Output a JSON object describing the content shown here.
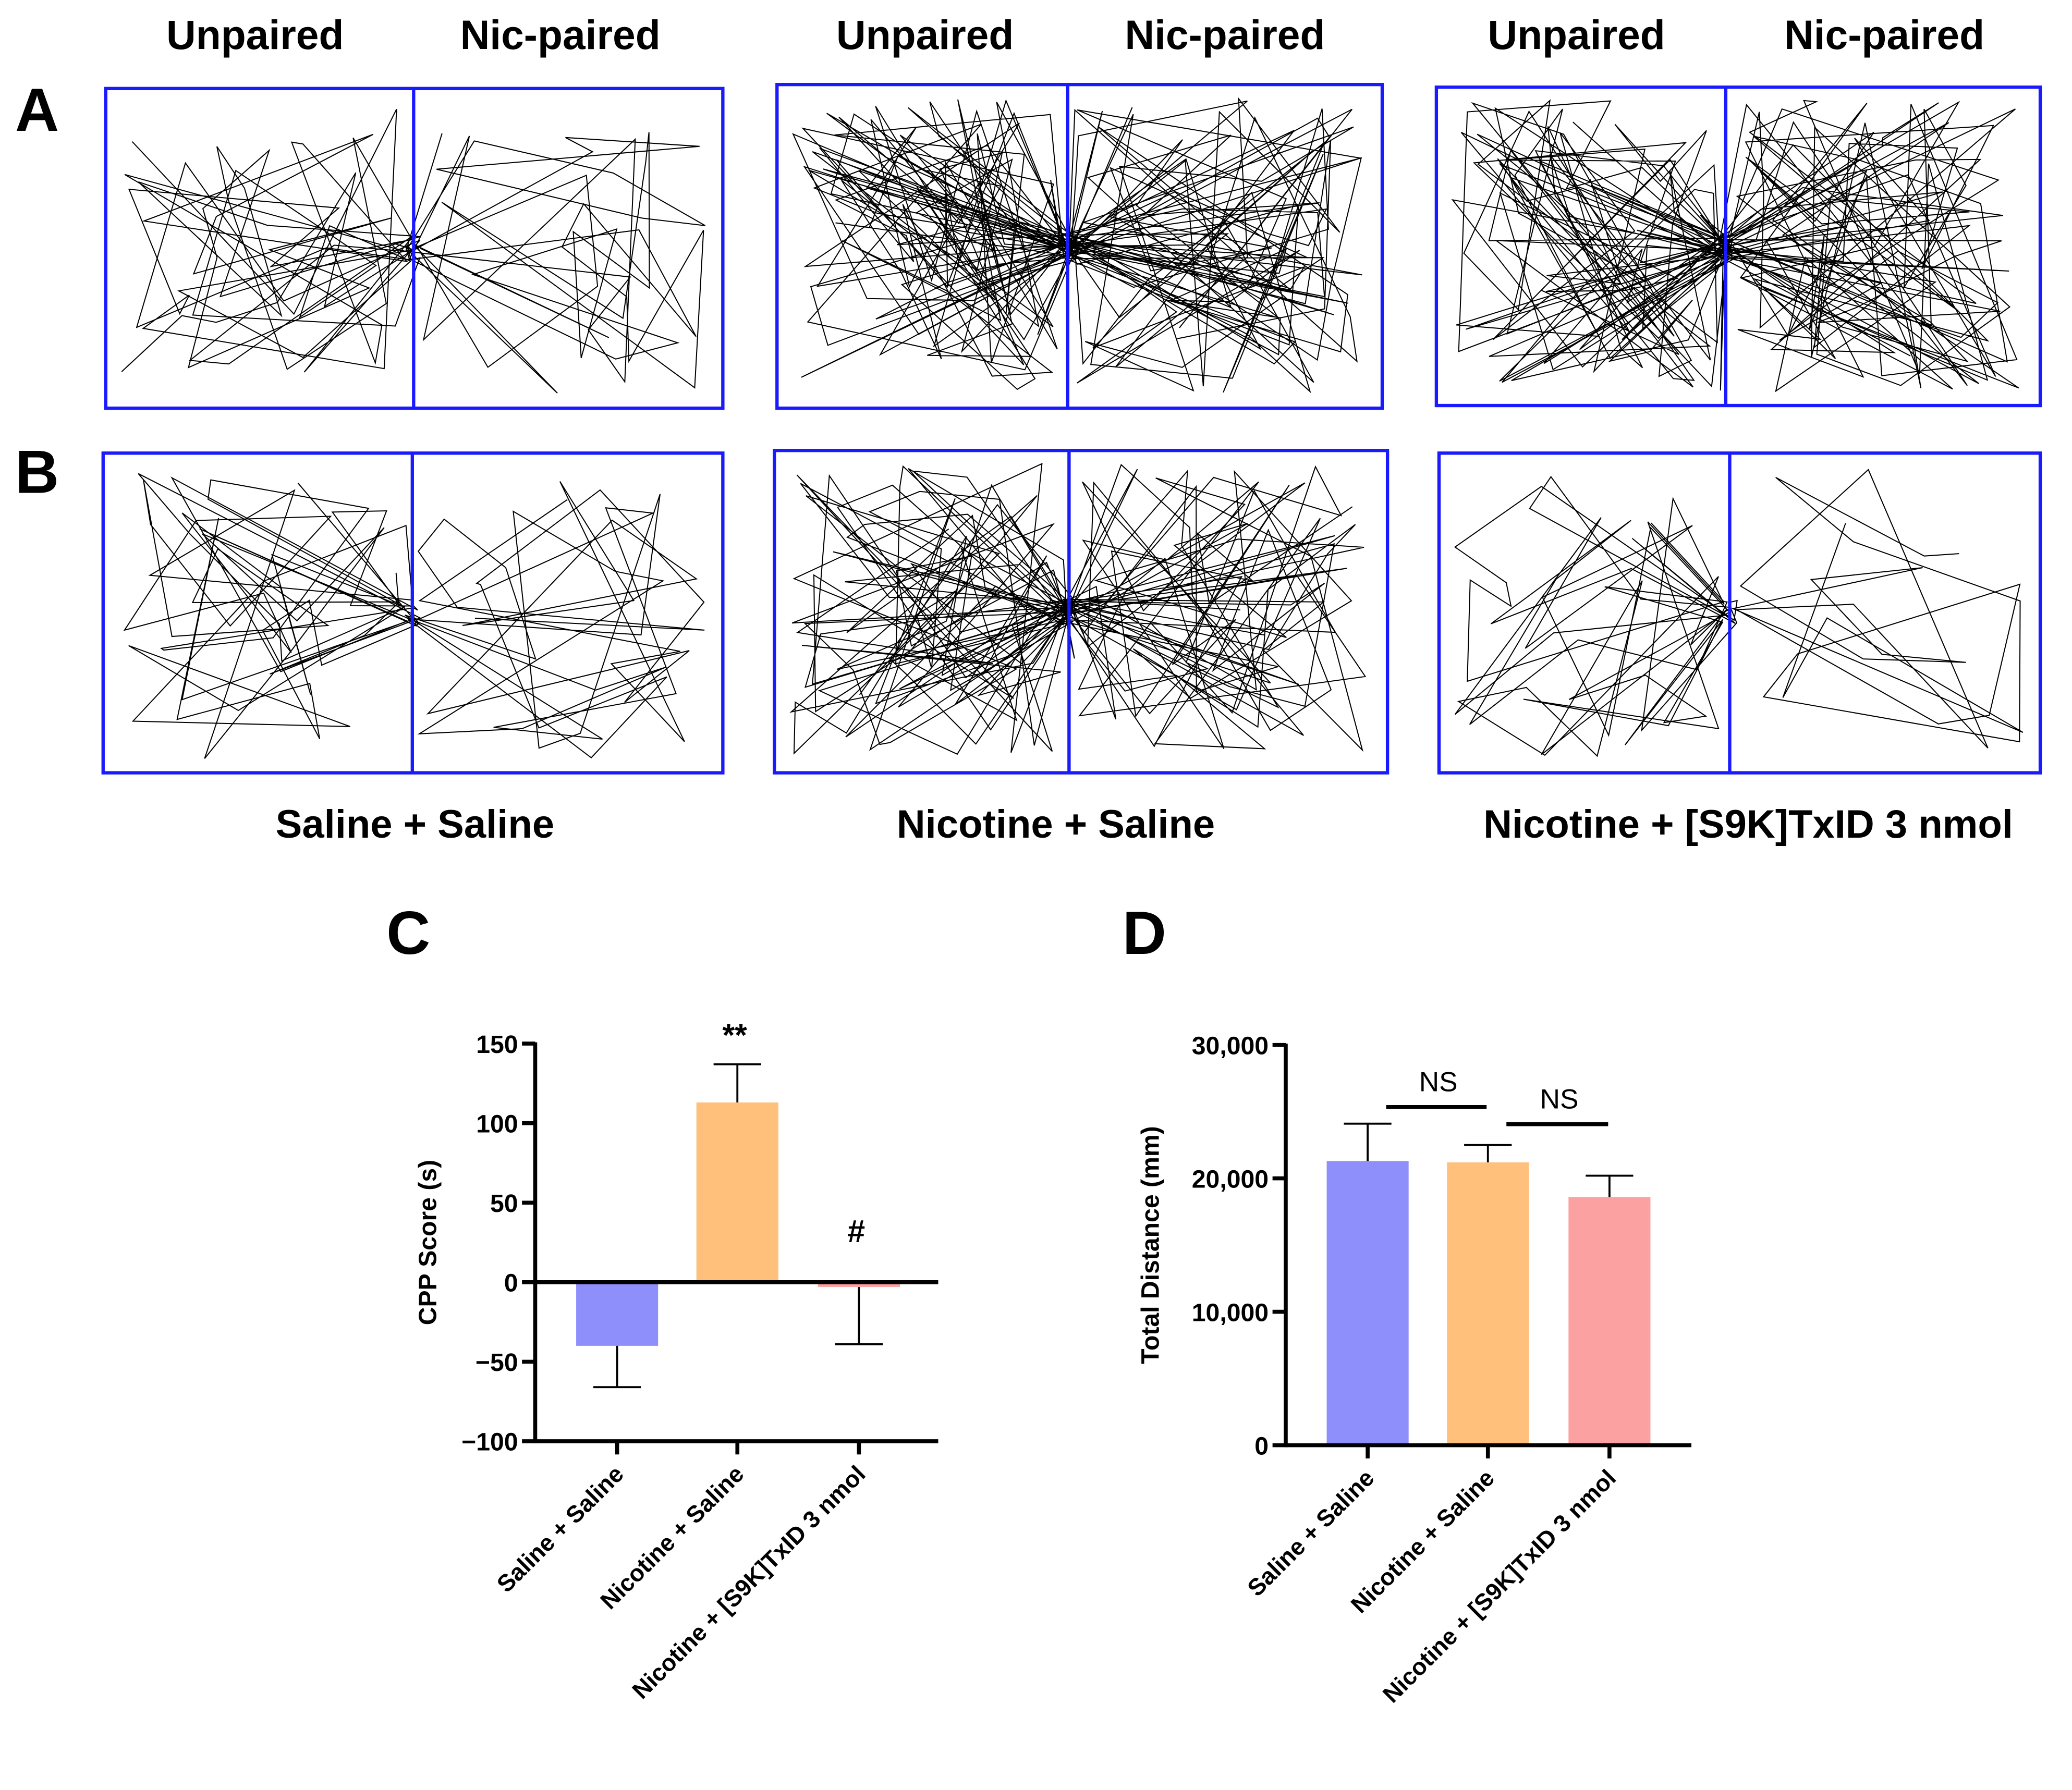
{
  "panel_labels": [
    "A",
    "B",
    "C",
    "D"
  ],
  "chamber_headers": [
    {
      "left": "Unpaired",
      "right": "Nic-paired"
    },
    {
      "left": "Unpaired",
      "right": "Nic-paired"
    },
    {
      "left": "Unpaired",
      "right": "Nic-paired"
    }
  ],
  "group_labels": [
    "Saline + Saline",
    "Nicotine + Saline",
    "Nicotine + [S9K]TxID 3 nmol"
  ],
  "colors": {
    "box_border": "#1a1aff",
    "track": "#000000"
  },
  "chart_data": [
    {
      "type": "bar",
      "panel": "C",
      "ylabel": "CPP Score (s)",
      "xlabel": "",
      "categories": [
        "Saline + Saline",
        "Nicotine + Saline",
        "Nicotine + [S9K]TxID 3 nmol"
      ],
      "values": [
        -40,
        113,
        -3
      ],
      "errors": [
        26,
        24,
        36
      ],
      "error_direction": [
        "down",
        "up",
        "down"
      ],
      "colors": [
        "#8f8ffc",
        "#ffc07c",
        "#fca1a1"
      ],
      "ylim": [
        -100,
        150
      ],
      "yticks": [
        150,
        100,
        50,
        0,
        -50,
        -100
      ],
      "ytick_labels": [
        "150",
        "100",
        "50",
        "0",
        "−50",
        "−100"
      ],
      "annotations": [
        {
          "category": 1,
          "text": "**"
        },
        {
          "category": 2,
          "text": "#"
        }
      ],
      "grid": false
    },
    {
      "type": "bar",
      "panel": "D",
      "ylabel": "Total Distance (mm)",
      "xlabel": "",
      "categories": [
        "Saline + Saline",
        "Nicotine + Saline",
        "Nicotine + [S9K]TxID 3 nmol"
      ],
      "values": [
        21300,
        21200,
        18600
      ],
      "errors": [
        2800,
        1300,
        1600
      ],
      "colors": [
        "#8f8ffc",
        "#ffc07c",
        "#fca1a1"
      ],
      "ylim": [
        0,
        30000
      ],
      "yticks": [
        30000,
        20000,
        10000,
        0
      ],
      "ytick_labels": [
        "30,000",
        "20,000",
        "10,000",
        "0"
      ],
      "comparisons": [
        {
          "from": 0,
          "to": 1,
          "text": "NS"
        },
        {
          "from": 1,
          "to": 2,
          "text": "NS"
        }
      ],
      "grid": false
    }
  ]
}
